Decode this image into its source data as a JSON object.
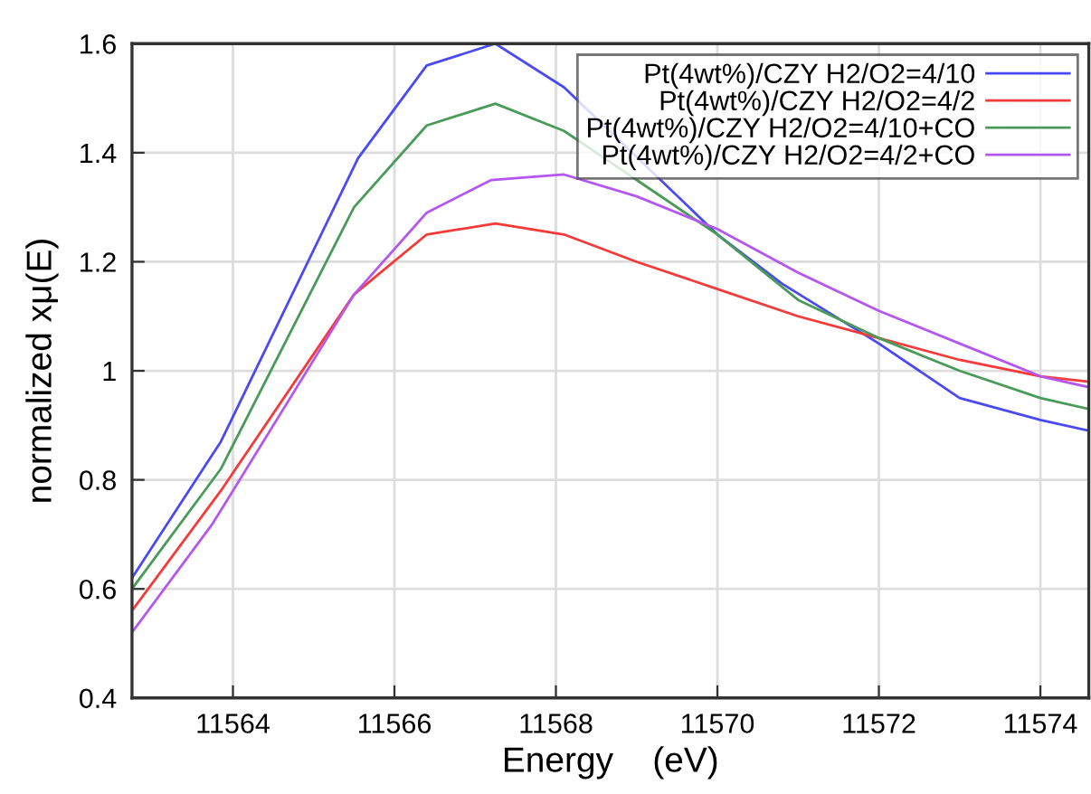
{
  "chart_data": {
    "type": "line",
    "xlabel": "Energy    (eV)",
    "ylabel": "normalized xμ(E)",
    "xlim": [
      11562.75,
      11574.6
    ],
    "xticks": [
      11564,
      11566,
      11568,
      11570,
      11572,
      11574
    ],
    "ylim": [
      0.4,
      1.6
    ],
    "yticks": [
      0.4,
      0.6,
      0.8,
      1,
      1.2,
      1.4,
      1.6
    ],
    "grid": true,
    "legend": "top right",
    "marker": "none",
    "line_style": "solid",
    "series": [
      {
        "name": "Pt(4wt%)/CZY H2/O2=4/10",
        "color": "#4a4af5",
        "x": [
          11562.75,
          11563.85,
          11565.55,
          11566.4,
          11567.25,
          11568.1,
          11570,
          11570.8,
          11572,
          11573,
          11574,
          11574.6
        ],
        "values": [
          0.62,
          0.87,
          1.39,
          1.56,
          1.6,
          1.52,
          1.25,
          1.16,
          1.05,
          0.95,
          0.91,
          0.89
        ]
      },
      {
        "name": "Pt(4wt%)/CZY H2/O2=4/2",
        "color": "#f53a3a",
        "x": [
          11562.75,
          11563.85,
          11565.5,
          11566.4,
          11567.25,
          11568.1,
          11569,
          11570,
          11571,
          11572,
          11573,
          11574,
          11574.6
        ],
        "values": [
          0.56,
          0.78,
          1.14,
          1.25,
          1.27,
          1.25,
          1.2,
          1.15,
          1.1,
          1.06,
          1.02,
          0.99,
          0.98
        ]
      },
      {
        "name": "Pt(4wt%)/CZY H2/O2=4/10+CO",
        "color": "#4a9a5a",
        "x": [
          11562.75,
          11563.85,
          11565.5,
          11566.4,
          11567.25,
          11568.1,
          11569,
          11570,
          11571,
          11572,
          11573,
          11574,
          11574.6
        ],
        "values": [
          0.6,
          0.82,
          1.3,
          1.45,
          1.49,
          1.44,
          1.35,
          1.25,
          1.13,
          1.06,
          1.0,
          0.95,
          0.93
        ]
      },
      {
        "name": "Pt(4wt%)/CZY H2/O2=4/2+CO",
        "color": "#b457ee",
        "x": [
          11562.75,
          11563.75,
          11565.5,
          11566.4,
          11567.2,
          11568.1,
          11569,
          11570,
          11571,
          11572,
          11573,
          11574,
          11574.6
        ],
        "values": [
          0.52,
          0.72,
          1.14,
          1.29,
          1.35,
          1.36,
          1.32,
          1.26,
          1.18,
          1.11,
          1.05,
          0.99,
          0.97
        ]
      }
    ]
  }
}
